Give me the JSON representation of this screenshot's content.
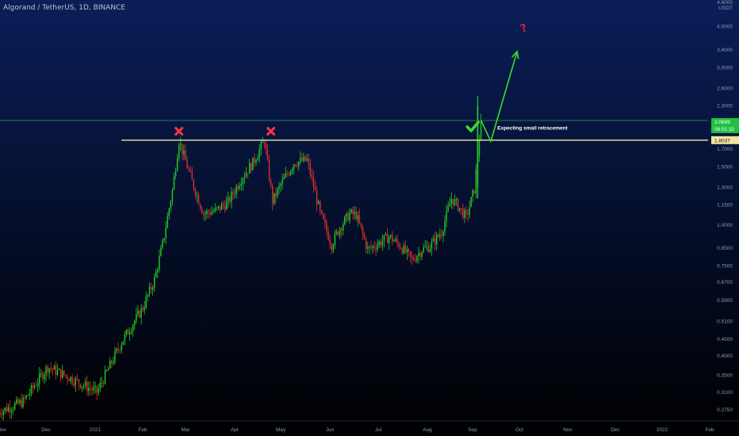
{
  "chart_header": {
    "symbol_line": "Algorand / TetherUS, 1D, BINANCE"
  },
  "price_axis": {
    "unit": "USDT",
    "tick_labels": [
      "4.6000",
      "4.0000",
      "3.4000",
      "3.0000",
      "2.6000",
      "2.3000",
      "1.7000",
      "1.5000",
      "1.3000",
      "1.1500",
      "1.0000",
      "0.8500",
      "0.7500",
      "0.6700",
      "0.5900",
      "0.5100",
      "0.4500",
      "0.4000",
      "0.3500",
      "0.3100",
      "0.2750"
    ],
    "current_price_label": "2.0699",
    "countdown_label": "06:51:32",
    "resistance_label": "1.8037"
  },
  "time_axis": {
    "labels": [
      "Nov",
      "Dec",
      "2021",
      "Feb",
      "Mar",
      "Apr",
      "May",
      "Jun",
      "Jul",
      "Aug",
      "Sep",
      "Oct",
      "Nov",
      "Dec",
      "2022",
      "Feb"
    ]
  },
  "annotations": {
    "retracement_text": "Expecting small retracement"
  },
  "colors": {
    "background_top": "#0a1e58",
    "background_bottom": "#000000",
    "up_candle": "#22d122",
    "down_candle": "#e03030",
    "resistance_line": "#f0e6a0",
    "current_price_line": "#1f7a56",
    "current_price_tag": "#1fbf3f",
    "resistance_tag": "#f0e6a0",
    "arrow": "#3ddc2c",
    "x_marker": "#ff3344",
    "question_mark": "#dd1c2c",
    "axis_text": "#8e9ab0"
  },
  "chart_data": {
    "type": "candlestick",
    "price_scale": "log",
    "y_range": [
      0.255,
      4.75
    ],
    "resistance_level": 1.8037,
    "current_price": 2.0699,
    "close_path_days": [
      0,
      15,
      30,
      45,
      60,
      75,
      88,
      95,
      100,
      106,
      110,
      118,
      125,
      132,
      140,
      148,
      155,
      162,
      167,
      172,
      180,
      188,
      192,
      196,
      203,
      208,
      214,
      218,
      225,
      232,
      238,
      245,
      252,
      258,
      263,
      270,
      276,
      280,
      285,
      290,
      294
    ],
    "close_path_values": [
      0.27,
      0.29,
      0.37,
      0.34,
      0.31,
      0.44,
      0.56,
      0.68,
      0.87,
      1.27,
      1.8,
      1.35,
      1.08,
      1.1,
      1.17,
      1.38,
      1.54,
      1.8,
      1.18,
      1.32,
      1.54,
      1.57,
      1.31,
      1.08,
      0.87,
      0.98,
      1.08,
      1.07,
      0.84,
      0.88,
      0.92,
      0.86,
      0.78,
      0.84,
      0.86,
      0.95,
      1.2,
      1.14,
      1.05,
      1.28,
      2.07
    ],
    "markers": [
      {
        "type": "x",
        "day": 110,
        "price": 1.92
      },
      {
        "type": "x",
        "day": 166,
        "price": 1.92
      },
      {
        "type": "check",
        "day": 289,
        "price": 1.98
      }
    ],
    "projection_path": [
      {
        "day": 294,
        "price": 2.07
      },
      {
        "day": 300,
        "price": 1.79
      },
      {
        "day": 316,
        "price": 3.35
      }
    ],
    "question_marker": {
      "day": 320,
      "price": 3.95
    }
  }
}
